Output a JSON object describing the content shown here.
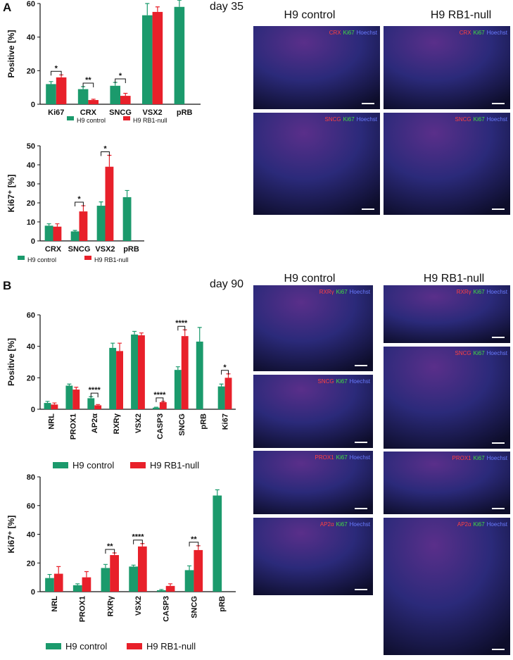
{
  "figure": {
    "panel_a": "A",
    "day_a": "day 35",
    "panel_b": "B",
    "day_b": "day 90"
  },
  "chart_data": [
    {
      "type": "bar",
      "ylabel": "Positive [%]",
      "categories": [
        "Ki67",
        "CRX",
        "SNCG",
        "VSX2",
        "pRB"
      ],
      "ylim": [
        0,
        60
      ],
      "yticks": [
        0,
        20,
        40,
        60
      ],
      "series": [
        {
          "name": "H9 control",
          "color": "#1b9a6c",
          "values": [
            12,
            9,
            11,
            53,
            58
          ],
          "errors": [
            1.5,
            1.5,
            2,
            7,
            4
          ]
        },
        {
          "name": "H9 RB1-null",
          "color": "#e8202a",
          "values": [
            16,
            2.5,
            5,
            55,
            null
          ],
          "errors": [
            1.5,
            0.5,
            1.5,
            3,
            null
          ]
        }
      ],
      "annotations": [
        {
          "category": "Ki67",
          "label": "*"
        },
        {
          "category": "CRX",
          "label": "**"
        },
        {
          "category": "SNCG",
          "label": "*"
        }
      ]
    },
    {
      "type": "bar",
      "ylabel": "Ki67⁺ [%]",
      "categories": [
        "CRX",
        "SNCG",
        "VSX2",
        "pRB"
      ],
      "ylim": [
        0,
        50
      ],
      "yticks": [
        0,
        10,
        20,
        30,
        40,
        50
      ],
      "series": [
        {
          "name": "H9 control",
          "color": "#1b9a6c",
          "values": [
            8,
            5,
            18.5,
            23
          ],
          "errors": [
            1,
            0.5,
            2,
            3.5
          ]
        },
        {
          "name": "H9 RB1-null",
          "color": "#e8202a",
          "values": [
            7.5,
            15.5,
            39,
            null
          ],
          "errors": [
            1.5,
            3,
            6,
            null
          ]
        }
      ],
      "annotations": [
        {
          "category": "SNCG",
          "label": "*"
        },
        {
          "category": "VSX2",
          "label": "*"
        }
      ]
    },
    {
      "type": "bar",
      "ylabel": "Positive [%]",
      "categories": [
        "NRL",
        "PROX1",
        "AP2α",
        "RXRγ",
        "VSX2",
        "CASP3",
        "SNCG",
        "pRB",
        "Ki67"
      ],
      "ylim": [
        0,
        60
      ],
      "yticks": [
        0,
        20,
        40,
        60
      ],
      "series": [
        {
          "name": "H9 control",
          "color": "#1b9a6c",
          "values": [
            4,
            15,
            7,
            39,
            47.5,
            1,
            25,
            43,
            14.5
          ],
          "errors": [
            1,
            1,
            1,
            3,
            2,
            0.3,
            2,
            9,
            1.5
          ]
        },
        {
          "name": "H9 RB1-null",
          "color": "#e8202a",
          "values": [
            3,
            12.5,
            2.5,
            37,
            47,
            4.5,
            46.5,
            null,
            20
          ],
          "errors": [
            1,
            1.5,
            0.5,
            5,
            1.5,
            0.5,
            4,
            null,
            2.5
          ]
        }
      ],
      "annotations": [
        {
          "category": "AP2α",
          "label": "****"
        },
        {
          "category": "CASP3",
          "label": "****"
        },
        {
          "category": "SNCG",
          "label": "****"
        },
        {
          "category": "Ki67",
          "label": "*"
        }
      ]
    },
    {
      "type": "bar",
      "ylabel": "Ki67⁺ [%]",
      "categories": [
        "NRL",
        "PROX1",
        "RXRγ",
        "VSX2",
        "CASP3",
        "SNCG",
        "pRB"
      ],
      "ylim": [
        0,
        80
      ],
      "yticks": [
        0,
        20,
        40,
        60,
        80
      ],
      "series": [
        {
          "name": "H9 control",
          "color": "#1b9a6c",
          "values": [
            9.5,
            4.5,
            16.5,
            17.5,
            1,
            15,
            67
          ],
          "errors": [
            2.5,
            1,
            2.5,
            1,
            0.5,
            3,
            4
          ]
        },
        {
          "name": "H9 RB1-null",
          "color": "#e8202a",
          "values": [
            12.5,
            10,
            25.5,
            31.5,
            4,
            29,
            null
          ],
          "errors": [
            5,
            4,
            1.5,
            2,
            1.5,
            3,
            null
          ]
        }
      ],
      "annotations": [
        {
          "category": "RXRγ",
          "label": "**"
        },
        {
          "category": "VSX2",
          "label": "****"
        },
        {
          "category": "SNCG",
          "label": "**"
        }
      ]
    }
  ],
  "images": [
    {
      "columns": [
        "H9 control",
        "H9 RB1-null"
      ],
      "panels": [
        {
          "stains": [
            "CRX",
            "Ki67",
            "Hoechst"
          ]
        },
        {
          "stains": [
            "CRX",
            "Ki67",
            "Hoechst"
          ]
        },
        {
          "stains": [
            "SNCG",
            "Ki67",
            "Hoechst"
          ]
        },
        {
          "stains": [
            "SNCG",
            "Ki67",
            "Hoechst"
          ]
        }
      ]
    },
    {
      "columns": [
        "H9 control",
        "H9 RB1-null"
      ],
      "panels": [
        {
          "stains": [
            "RXRγ",
            "Ki67",
            "Hoechst"
          ]
        },
        {
          "stains": [
            "SNCG",
            "Ki67",
            "Hoechst"
          ]
        },
        {
          "stains": [
            "PROX1",
            "Ki67",
            "Hoechst"
          ]
        },
        {
          "stains": [
            "AP2α",
            "Ki67",
            "Hoechst"
          ]
        },
        {
          "stains": [
            "RXRγ",
            "Ki67",
            "Hoechst"
          ]
        },
        {
          "stains": [
            "SNCG",
            "Ki67",
            "Hoechst"
          ]
        },
        {
          "stains": [
            "PROX1",
            "Ki67",
            "Hoechst"
          ]
        },
        {
          "stains": [
            "AP2α",
            "Ki67",
            "Hoechst"
          ]
        }
      ]
    }
  ]
}
